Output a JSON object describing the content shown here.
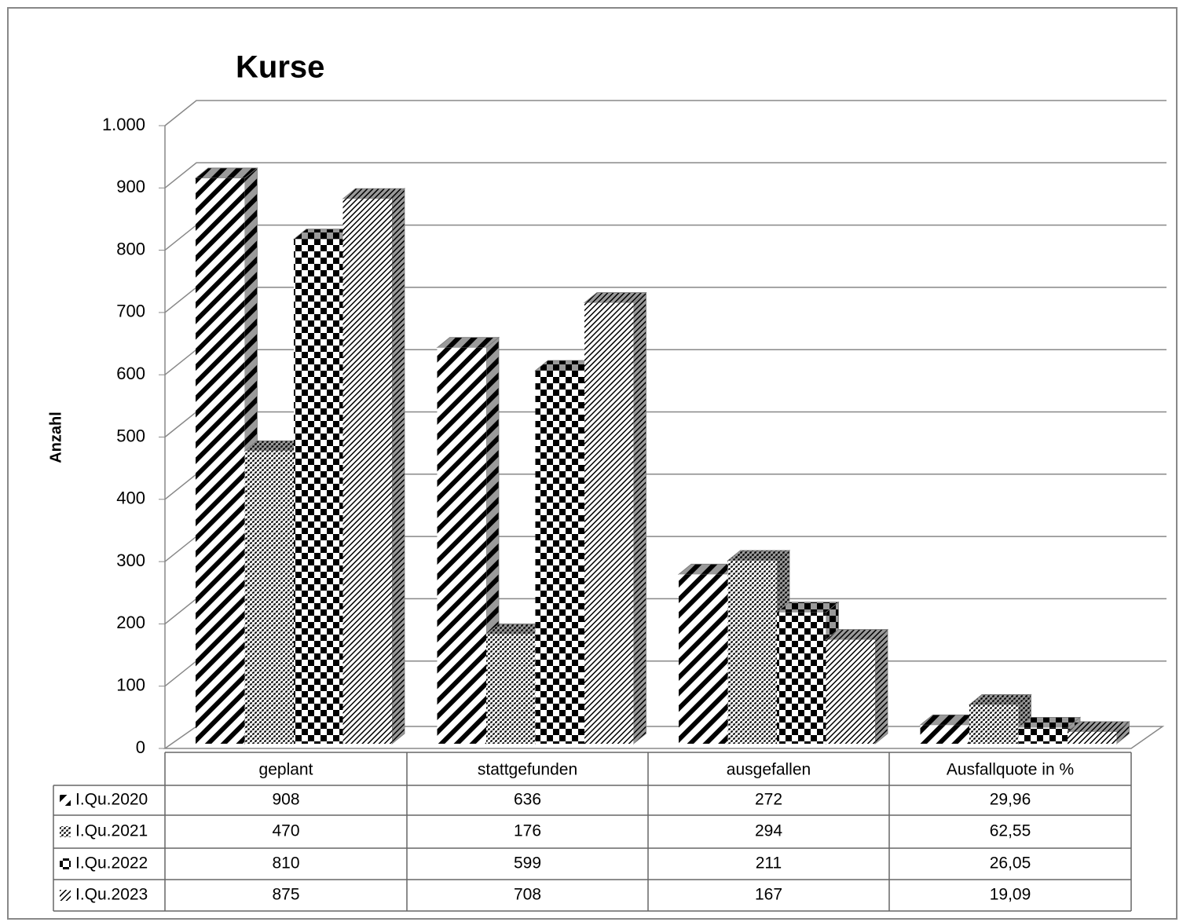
{
  "chart_data": {
    "type": "bar3d",
    "title": "Kurse",
    "y_label": "Anzahl",
    "categories": [
      "geplant",
      "stattgefunden",
      "ausgefallen",
      "Ausfallquote in %"
    ],
    "series": [
      {
        "name": "I.Qu.2020",
        "color": "#000000",
        "pattern": "wide-diagonal",
        "values": [
          908,
          636,
          272,
          29.96
        ],
        "value_labels": [
          "908",
          "636",
          "272",
          "29,96"
        ]
      },
      {
        "name": "I.Qu.2021",
        "color": "#000000",
        "pattern": "dotted",
        "values": [
          470,
          176,
          294,
          62.55
        ],
        "value_labels": [
          "470",
          "176",
          "294",
          "62,55"
        ]
      },
      {
        "name": "I.Qu.2022",
        "color": "#000000",
        "pattern": "checker",
        "values": [
          810,
          599,
          211,
          26.05
        ],
        "value_labels": [
          "810",
          "599",
          "211",
          "26,05"
        ]
      },
      {
        "name": "I.Qu.2023",
        "color": "#000000",
        "pattern": "fine-diagonal",
        "values": [
          875,
          708,
          167,
          19.09
        ],
        "value_labels": [
          "875",
          "708",
          "167",
          "19,09"
        ]
      }
    ],
    "ylim": [
      0,
      1000
    ],
    "yticks": [
      0,
      100,
      200,
      300,
      400,
      500,
      600,
      700,
      800,
      900,
      {
        "value": 1000,
        "label": "1.000"
      }
    ],
    "grid": true,
    "data_table": true
  }
}
